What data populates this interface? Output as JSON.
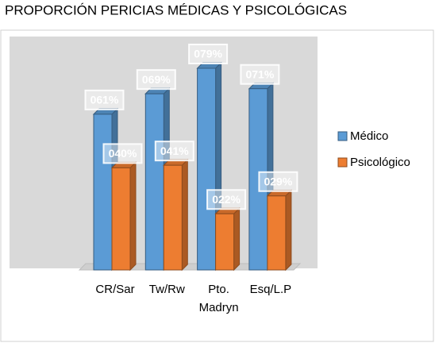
{
  "chart_data": {
    "type": "bar3d",
    "title": "PROPORCIÓN PERICIAS MÉDICAS Y PSICOLÓGICAS",
    "categories": [
      "CR/Sar",
      "Tw/Rw",
      "Pto. Madryn",
      "Esq/L.P"
    ],
    "series": [
      {
        "name": "Médico",
        "color": "#5b9bd5",
        "values": [
          61,
          69,
          79,
          71
        ],
        "value_labels": [
          "061%",
          "069%",
          "079%",
          "071%"
        ]
      },
      {
        "name": "Psicológico",
        "color": "#ed7d31",
        "values": [
          40,
          41,
          22,
          29
        ],
        "value_labels": [
          "040%",
          "041%",
          "022%",
          "029%"
        ]
      }
    ],
    "legend": "right"
  }
}
